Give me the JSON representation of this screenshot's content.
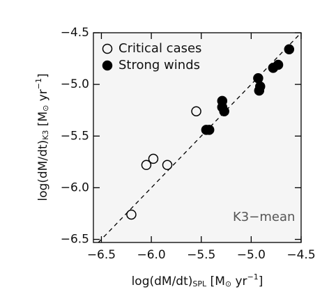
{
  "chart_data": {
    "type": "scatter",
    "x_label": [
      "log(dM/dt)",
      "SPL",
      " [M",
      "⊙",
      " yr",
      "−1",
      "]"
    ],
    "y_label": [
      "log(dM/dt)",
      "K3",
      " [M",
      "⊙",
      " yr",
      "−1",
      "]"
    ],
    "annotation": "K3−mean",
    "xlim": [
      -6.58,
      -4.5
    ],
    "ylim": [
      -6.53,
      -4.5
    ],
    "xticks": [
      {
        "value": -6.5,
        "label": "−6.5"
      },
      {
        "value": -6.0,
        "label": "−6.0"
      },
      {
        "value": -5.5,
        "label": "−5.5"
      },
      {
        "value": -5.0,
        "label": "−5.0"
      },
      {
        "value": -4.5,
        "label": "−4.5"
      }
    ],
    "yticks": [
      {
        "value": -6.5,
        "label": "−6.5"
      },
      {
        "value": -6.0,
        "label": "−6.0"
      },
      {
        "value": -5.5,
        "label": "−5.5"
      },
      {
        "value": -5.0,
        "label": "−5.0"
      },
      {
        "value": -4.5,
        "label": "−4.5"
      }
    ],
    "series": [
      {
        "name": "Critical cases",
        "color": "#000000",
        "filled": false,
        "x": [
          -6.2,
          -6.05,
          -5.98,
          -5.84,
          -5.55
        ],
        "values": [
          -6.26,
          -5.78,
          -5.72,
          -5.78,
          -5.26
        ]
      },
      {
        "name": "Strong winds",
        "color": "#000000",
        "filled": true,
        "x": [
          -5.45,
          -5.42,
          -5.29,
          -5.29,
          -5.27,
          -4.93,
          -4.91,
          -4.92,
          -4.78,
          -4.73,
          -4.62
        ],
        "values": [
          -5.44,
          -5.44,
          -5.16,
          -5.22,
          -5.26,
          -4.94,
          -5.02,
          -5.06,
          -4.84,
          -4.81,
          -4.66
        ]
      }
    ]
  }
}
